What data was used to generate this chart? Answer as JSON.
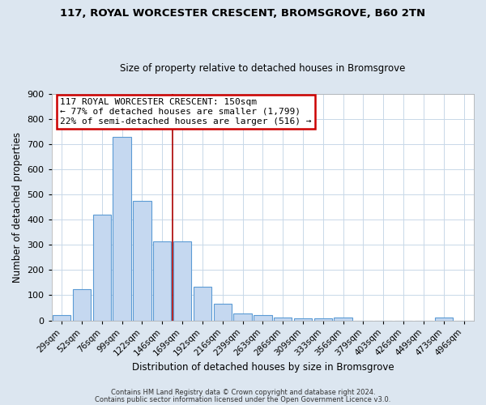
{
  "title": "117, ROYAL WORCESTER CRESCENT, BROMSGROVE, B60 2TN",
  "subtitle": "Size of property relative to detached houses in Bromsgrove",
  "xlabel": "Distribution of detached houses by size in Bromsgrove",
  "ylabel": "Number of detached properties",
  "bar_labels": [
    "29sqm",
    "52sqm",
    "76sqm",
    "99sqm",
    "122sqm",
    "146sqm",
    "169sqm",
    "192sqm",
    "216sqm",
    "239sqm",
    "263sqm",
    "286sqm",
    "309sqm",
    "333sqm",
    "356sqm",
    "379sqm",
    "403sqm",
    "426sqm",
    "449sqm",
    "473sqm",
    "496sqm"
  ],
  "bar_values": [
    20,
    125,
    420,
    730,
    475,
    315,
    315,
    135,
    65,
    28,
    20,
    10,
    7,
    7,
    10,
    0,
    0,
    0,
    0,
    10,
    0
  ],
  "bar_color": "#c5d8f0",
  "bar_edge_color": "#5b9bd5",
  "figure_bg_color": "#dce6f0",
  "axes_bg_color": "#ffffff",
  "grid_color": "#c8d8e8",
  "property_line_x": 5.5,
  "annotation_text": "117 ROYAL WORCESTER CRESCENT: 150sqm\n← 77% of detached houses are smaller (1,799)\n22% of semi-detached houses are larger (516) →",
  "annotation_box_color": "#ffffff",
  "annotation_box_edge_color": "#cc0000",
  "red_line_color": "#aa0000",
  "footer_line1": "Contains HM Land Registry data © Crown copyright and database right 2024.",
  "footer_line2": "Contains public sector information licensed under the Open Government Licence v3.0.",
  "ylim": [
    0,
    900
  ],
  "yticks": [
    0,
    100,
    200,
    300,
    400,
    500,
    600,
    700,
    800,
    900
  ]
}
